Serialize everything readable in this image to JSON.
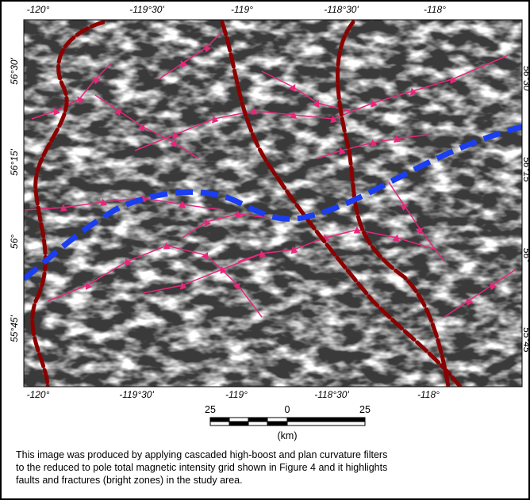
{
  "map": {
    "top_longitude_labels": [
      "-120°",
      "-119°30'",
      "-119°",
      "-118°30'",
      "-118°"
    ],
    "bottom_longitude_labels": [
      "-120°",
      "-119°30'",
      "-119°",
      "-118°30'",
      "-118°"
    ],
    "left_latitude_labels": [
      "56°30'",
      "56°15'",
      "56°",
      "55°45'"
    ],
    "right_latitude_labels": [
      "56°30'",
      "56°15'",
      "56°",
      "55°45'"
    ]
  },
  "scale_bar": {
    "labels": [
      "25",
      "0",
      "25"
    ],
    "unit": "(km)"
  },
  "caption": {
    "lines": [
      "This image was produced by applying cascaded high-boost and plan curvature filters",
      "to the reduced to pole total magnetic intensity grid shown in Figure 4 and it highlights",
      "faults and fractures (bright zones) in the study area."
    ]
  }
}
